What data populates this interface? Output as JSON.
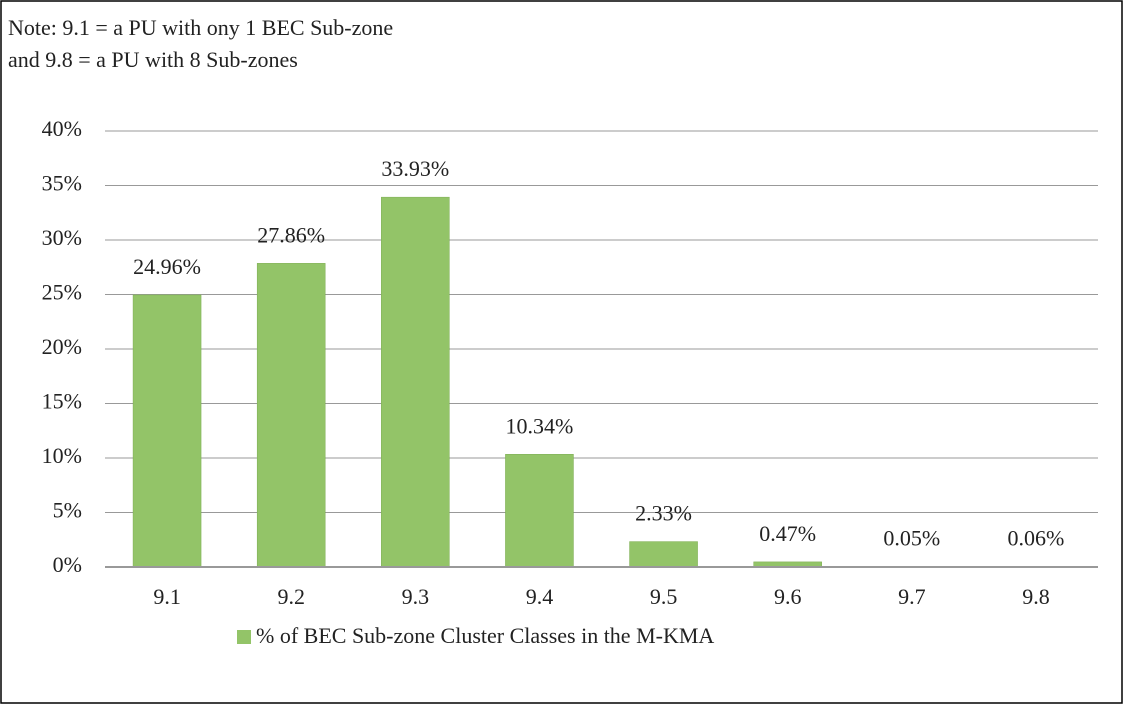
{
  "chart_data": {
    "type": "bar",
    "note": [
      "Note: 9.1 = a PU with ony 1 BEC Sub-zone",
      "and 9.8 = a PU with 8 Sub-zones"
    ],
    "categories": [
      "9.1",
      "9.2",
      "9.3",
      "9.4",
      "9.5",
      "9.6",
      "9.7",
      "9.8"
    ],
    "series": [
      {
        "name": "% of BEC Sub-zone Cluster Classes in the M-KMA",
        "color": "#93c468",
        "values": [
          24.96,
          27.86,
          33.93,
          10.34,
          2.33,
          0.47,
          0.05,
          0.06
        ],
        "value_labels": [
          "24.96%",
          "27.86%",
          "33.93%",
          "10.34%",
          "2.33%",
          "0.47%",
          "0.05%",
          "0.06%"
        ]
      }
    ],
    "ylim": [
      0,
      40
    ],
    "yticks": [
      {
        "value": 0,
        "label": "0%"
      },
      {
        "value": 5,
        "label": "5%"
      },
      {
        "value": 10,
        "label": "10%"
      },
      {
        "value": 15,
        "label": "15%"
      },
      {
        "value": 20,
        "label": "20%"
      },
      {
        "value": 25,
        "label": "25%"
      },
      {
        "value": 30,
        "label": "30%"
      },
      {
        "value": 35,
        "label": "35%"
      },
      {
        "value": 40,
        "label": "40%"
      }
    ],
    "grid": true,
    "legend": "bottom"
  }
}
